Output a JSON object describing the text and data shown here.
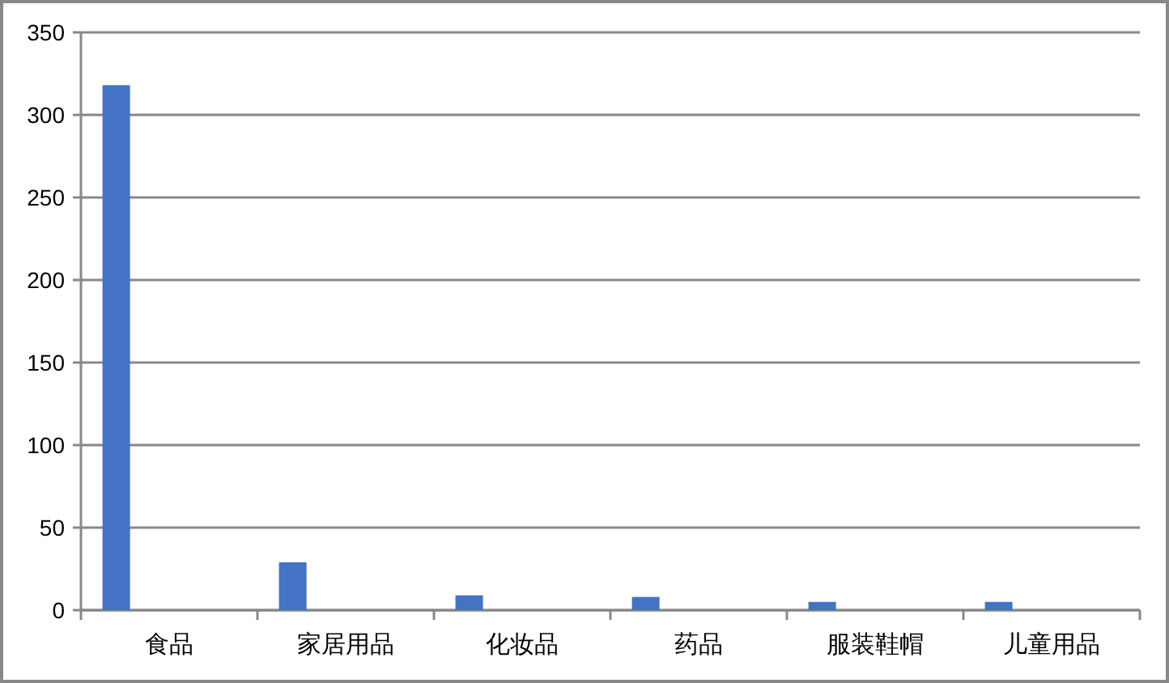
{
  "chart_data": {
    "type": "bar",
    "categories": [
      "食品",
      "家居用品",
      "化妆品",
      "药品",
      "服装鞋帽",
      "儿童用品"
    ],
    "series": [
      {
        "color": "#4472c4",
        "values": [
          318,
          29,
          9,
          8,
          5,
          5
        ]
      }
    ],
    "ylim": [
      0,
      350
    ],
    "yticks": [
      0,
      50,
      100,
      150,
      200,
      250,
      300,
      350
    ],
    "grid": "y"
  }
}
